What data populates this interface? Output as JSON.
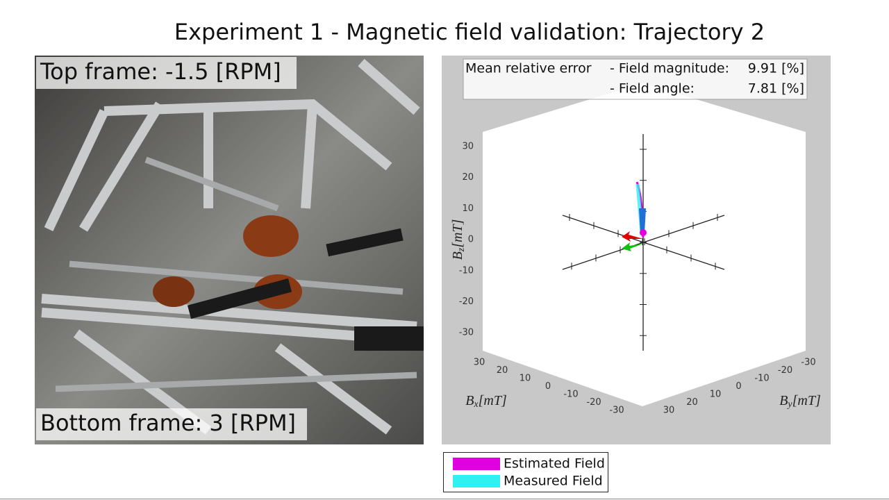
{
  "title": "Experiment 1 - Magnetic field validation: Trajectory 2",
  "photo": {
    "top_label": "Top frame: -1.5 [RPM]",
    "bottom_label": "Bottom frame: 3 [RPM]"
  },
  "plot": {
    "error_box": {
      "heading": "Mean relative error",
      "rows": [
        {
          "label": "- Field magnitude:",
          "value": "9.91 [%]"
        },
        {
          "label": "- Field angle:",
          "value": "7.81 [%]"
        }
      ]
    },
    "z_ticks": [
      30,
      20,
      10,
      0,
      -10,
      -20,
      -30
    ],
    "x_ticks": [
      30,
      20,
      10,
      0,
      -10,
      -20,
      -30
    ],
    "y_ticks": [
      -30,
      -20,
      -10,
      0,
      10,
      20,
      30
    ],
    "z_label": {
      "symbol": "B",
      "sub": "z",
      "unit": "[mT]"
    },
    "x_label": {
      "symbol": "B",
      "sub": "x",
      "unit": "[mT]"
    },
    "y_label": {
      "symbol": "B",
      "sub": "y",
      "unit": "[mT]"
    }
  },
  "legend": [
    "Estimated Field",
    "Measured Field"
  ]
}
